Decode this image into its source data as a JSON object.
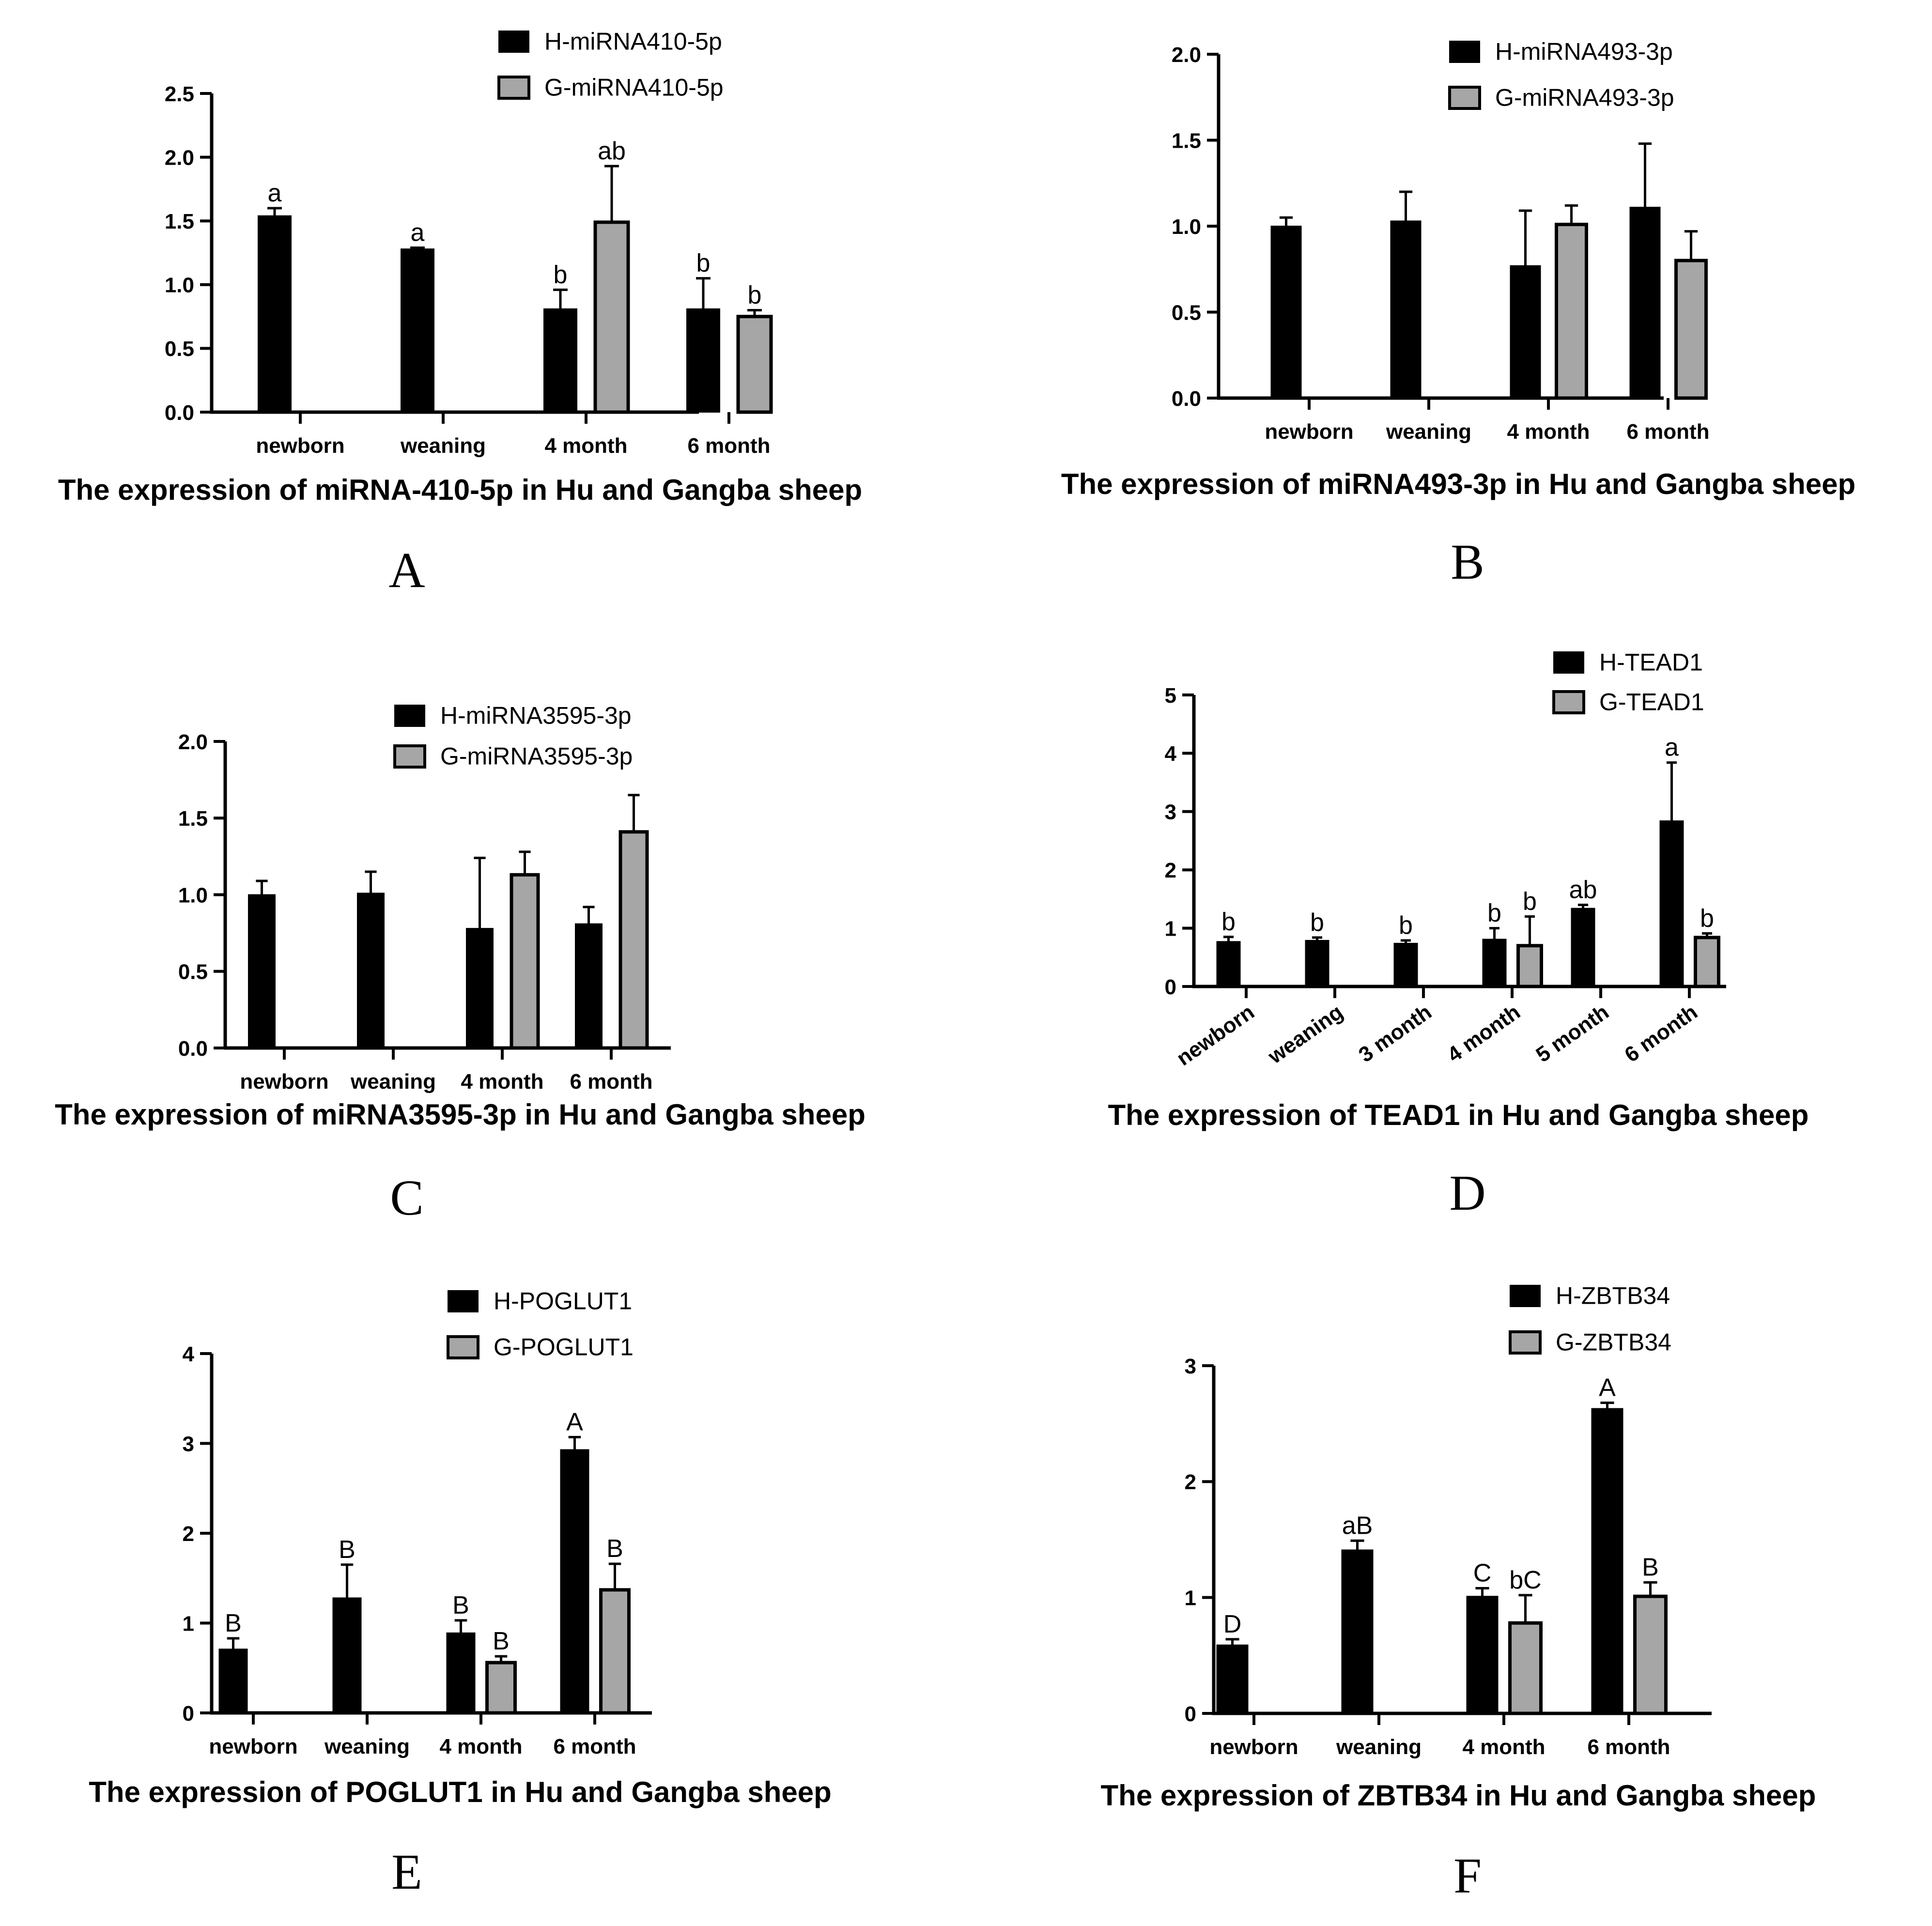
{
  "colors": {
    "h_series": "#000000",
    "g_series": "#a6a6a6",
    "axis": "#000000"
  },
  "chart_data": [
    {
      "panel": "A",
      "type": "bar",
      "title": "The expression of miRNA-410-5p in Hu and Gangba sheep",
      "categories": [
        "newborn",
        "weaning",
        "4 month",
        "6 month"
      ],
      "ylim": [
        0,
        2.5
      ],
      "yticks": [
        0.0,
        0.5,
        1.0,
        1.5,
        2.0,
        2.5
      ],
      "yticklabels": [
        "0.0",
        "0.5",
        "1.0",
        "1.5",
        "2.0",
        "2.5"
      ],
      "series": [
        {
          "name": "H-miRNA410-5p",
          "values": [
            1.54,
            1.28,
            0.81,
            0.81
          ],
          "errors": [
            0.06,
            0.01,
            0.15,
            0.24
          ],
          "labels": [
            "a",
            "a",
            "b",
            "b"
          ]
        },
        {
          "name": "G-miRNA410-5p",
          "values": [
            null,
            null,
            1.49,
            0.75
          ],
          "errors": [
            null,
            null,
            0.44,
            0.05
          ],
          "labels": [
            "",
            "",
            "ab",
            "b"
          ]
        }
      ]
    },
    {
      "panel": "B",
      "type": "bar",
      "title": "The expression of miRNA493-3p in Hu and Gangba sheep",
      "categories": [
        "newborn",
        "weaning",
        "4 month",
        "6 month"
      ],
      "ylim": [
        0,
        2.0
      ],
      "yticks": [
        0.0,
        0.5,
        1.0,
        1.5,
        2.0
      ],
      "yticklabels": [
        "0.0",
        "0.5",
        "1.0",
        "1.5",
        "2.0"
      ],
      "series": [
        {
          "name": "H-miRNA493-3p",
          "values": [
            1.0,
            1.03,
            0.77,
            1.11
          ],
          "errors": [
            0.05,
            0.17,
            0.32,
            0.37
          ],
          "labels": [
            "",
            "",
            "",
            ""
          ]
        },
        {
          "name": "G-miRNA493-3p",
          "values": [
            null,
            null,
            1.01,
            0.8
          ],
          "errors": [
            null,
            null,
            0.11,
            0.17
          ],
          "labels": [
            "",
            "",
            "",
            ""
          ]
        }
      ]
    },
    {
      "panel": "C",
      "type": "bar",
      "title": "The expression of miRNA3595-3p in Hu and Gangba sheep",
      "categories": [
        "newborn",
        "weaning",
        "4 month",
        "6 month"
      ],
      "ylim": [
        0,
        2.0
      ],
      "yticks": [
        0.0,
        0.5,
        1.0,
        1.5,
        2.0
      ],
      "yticklabels": [
        "0.0",
        "0.5",
        "1.0",
        "1.5",
        "2.0"
      ],
      "series": [
        {
          "name": "H-miRNA3595-3p",
          "values": [
            1.0,
            1.01,
            0.78,
            0.81
          ],
          "errors": [
            0.09,
            0.14,
            0.46,
            0.11
          ],
          "labels": [
            "",
            "",
            "",
            ""
          ]
        },
        {
          "name": "G-miRNA3595-3p",
          "values": [
            null,
            null,
            1.13,
            1.41
          ],
          "errors": [
            null,
            null,
            0.15,
            0.24
          ],
          "labels": [
            "",
            "",
            "",
            ""
          ]
        }
      ]
    },
    {
      "panel": "D",
      "type": "bar",
      "title": "The expression of TEAD1 in Hu and Gangba sheep",
      "categories": [
        "newborn",
        "weaning",
        "3 month",
        "4 month",
        "5 month",
        "6 month"
      ],
      "rotated_xticks": true,
      "ylim": [
        0,
        5
      ],
      "yticks": [
        0,
        1,
        2,
        3,
        4,
        5
      ],
      "yticklabels": [
        "0",
        "1",
        "2",
        "3",
        "4",
        "5"
      ],
      "series": [
        {
          "name": "H-TEAD1",
          "values": [
            0.77,
            0.79,
            0.74,
            0.81,
            1.34,
            2.84
          ],
          "errors": [
            0.08,
            0.05,
            0.05,
            0.19,
            0.06,
            1.0
          ],
          "labels": [
            "b",
            "b",
            "b",
            "b",
            "ab",
            "a"
          ]
        },
        {
          "name": "G-TEAD1",
          "values": [
            null,
            null,
            null,
            0.7,
            null,
            0.84
          ],
          "errors": [
            null,
            null,
            null,
            0.5,
            null,
            0.07
          ],
          "labels": [
            "",
            "",
            "",
            "b",
            "",
            "b"
          ]
        }
      ]
    },
    {
      "panel": "E",
      "type": "bar",
      "title": "The expression of POGLUT1 in Hu and Gangba sheep",
      "categories": [
        "newborn",
        "weaning",
        "4 month",
        "6 month"
      ],
      "ylim": [
        0,
        4
      ],
      "yticks": [
        0,
        1,
        2,
        3,
        4
      ],
      "yticklabels": [
        "0",
        "1",
        "2",
        "3",
        "4"
      ],
      "series": [
        {
          "name": "H-POGLUT1",
          "values": [
            0.71,
            1.28,
            0.89,
            2.93
          ],
          "errors": [
            0.12,
            0.37,
            0.14,
            0.14
          ],
          "labels": [
            "B",
            "B",
            "B",
            "A"
          ]
        },
        {
          "name": "G-POGLUT1",
          "values": [
            null,
            null,
            0.56,
            1.37
          ],
          "errors": [
            null,
            null,
            0.07,
            0.29
          ],
          "labels": [
            "",
            "",
            "B",
            "B"
          ]
        }
      ]
    },
    {
      "panel": "F",
      "type": "bar",
      "title": "The expression of ZBTB34 in Hu and Gangba sheep",
      "categories": [
        "newborn",
        "weaning",
        "4 month",
        "6 month"
      ],
      "ylim": [
        0,
        3
      ],
      "yticks": [
        0,
        1,
        2,
        3
      ],
      "yticklabels": [
        "0",
        "1",
        "2",
        "3"
      ],
      "series": [
        {
          "name": "H-ZBTB34",
          "values": [
            0.59,
            1.41,
            1.01,
            2.63
          ],
          "errors": [
            0.05,
            0.08,
            0.07,
            0.05
          ],
          "labels": [
            "D",
            "aB",
            "C",
            "A"
          ]
        },
        {
          "name": "G-ZBTB34",
          "values": [
            null,
            null,
            0.78,
            1.01
          ],
          "errors": [
            null,
            null,
            0.24,
            0.12
          ],
          "labels": [
            "",
            "",
            "bC",
            "B"
          ]
        }
      ]
    }
  ]
}
